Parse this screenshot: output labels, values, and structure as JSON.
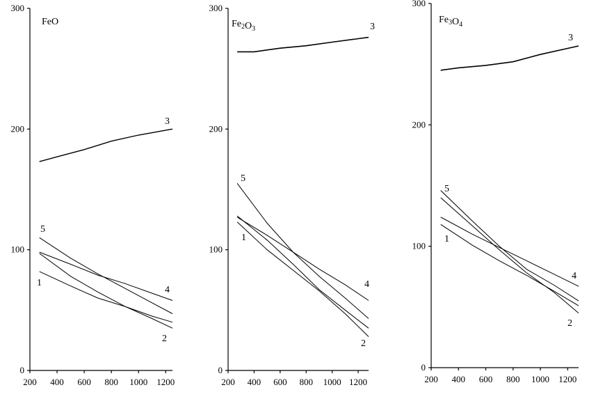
{
  "chart_data": [
    {
      "type": "line",
      "title": "FeO",
      "xlabel": "",
      "ylabel": "",
      "xlim": [
        200,
        1250
      ],
      "ylim": [
        0,
        300
      ],
      "xticks": [
        200,
        400,
        600,
        800,
        1000,
        1200
      ],
      "yticks": [
        0,
        100,
        200,
        300
      ],
      "grid": false,
      "series": [
        {
          "name": "1",
          "x": [
            270,
            500,
            700,
            900,
            1100,
            1250
          ],
          "y": [
            82,
            70,
            60,
            53,
            45,
            40
          ]
        },
        {
          "name": "2",
          "x": [
            270,
            500,
            700,
            900,
            1100,
            1250
          ],
          "y": [
            97,
            78,
            65,
            53,
            43,
            35
          ]
        },
        {
          "name": "3",
          "x": [
            270,
            400,
            600,
            800,
            1000,
            1250
          ],
          "y": [
            173,
            177,
            183,
            190,
            195,
            200
          ]
        },
        {
          "name": "4",
          "x": [
            270,
            500,
            700,
            900,
            1100,
            1250
          ],
          "y": [
            98,
            88,
            79,
            72,
            64,
            58
          ]
        },
        {
          "name": "5",
          "x": [
            270,
            500,
            700,
            900,
            1100,
            1250
          ],
          "y": [
            110,
            93,
            80,
            68,
            56,
            47
          ]
        }
      ]
    },
    {
      "type": "line",
      "title": "Fe2O3",
      "xlabel": "",
      "ylabel": "",
      "xlim": [
        200,
        1280
      ],
      "ylim": [
        0,
        300
      ],
      "xticks": [
        200,
        400,
        600,
        800,
        1000,
        1200
      ],
      "yticks": [
        0,
        100,
        200,
        300
      ],
      "grid": false,
      "series": [
        {
          "name": "1",
          "x": [
            270,
            500,
            700,
            900,
            1100,
            1280
          ],
          "y": [
            123,
            100,
            83,
            66,
            47,
            28
          ]
        },
        {
          "name": "2",
          "x": [
            270,
            500,
            700,
            900,
            1100,
            1280
          ],
          "y": [
            128,
            108,
            88,
            67,
            50,
            35
          ]
        },
        {
          "name": "3",
          "x": [
            270,
            400,
            600,
            800,
            1000,
            1280
          ],
          "y": [
            264,
            264,
            267,
            269,
            272,
            276
          ]
        },
        {
          "name": "4",
          "x": [
            270,
            500,
            700,
            900,
            1100,
            1280
          ],
          "y": [
            127,
            112,
            98,
            84,
            71,
            58
          ]
        },
        {
          "name": "5",
          "x": [
            270,
            500,
            700,
            900,
            1100,
            1280
          ],
          "y": [
            155,
            122,
            98,
            78,
            60,
            43
          ]
        }
      ]
    },
    {
      "type": "line",
      "title": "Fe3O4",
      "xlabel": "",
      "ylabel": "",
      "xlim": [
        200,
        1280
      ],
      "ylim": [
        0,
        300
      ],
      "xticks": [
        200,
        400,
        600,
        800,
        1000,
        1200
      ],
      "yticks": [
        0,
        100,
        200,
        300
      ],
      "grid": false,
      "series": [
        {
          "name": "1",
          "x": [
            270,
            500,
            700,
            900,
            1100,
            1280
          ],
          "y": [
            118,
            101,
            88,
            76,
            63,
            51
          ]
        },
        {
          "name": "2",
          "x": [
            270,
            500,
            700,
            900,
            1100,
            1280
          ],
          "y": [
            140,
            117,
            97,
            78,
            62,
            45
          ]
        },
        {
          "name": "3",
          "x": [
            270,
            400,
            600,
            800,
            1000,
            1280
          ],
          "y": [
            245,
            247,
            249,
            252,
            258,
            265
          ]
        },
        {
          "name": "4",
          "x": [
            270,
            500,
            700,
            900,
            1100,
            1280
          ],
          "y": [
            124,
            110,
            99,
            88,
            77,
            67
          ]
        },
        {
          "name": "5",
          "x": [
            270,
            500,
            700,
            900,
            1100,
            1280
          ],
          "y": [
            146,
            121,
            100,
            81,
            68,
            55
          ]
        }
      ]
    }
  ]
}
